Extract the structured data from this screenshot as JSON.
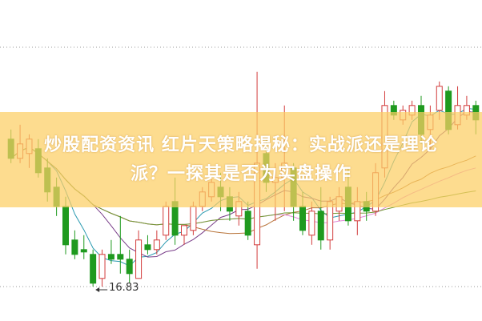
{
  "title_lines": [
    "炒股配资资讯 红片天策略揭秘：实战派还是理论",
    "派？一探其是否为实盘操作"
  ],
  "chart_data": {
    "type": "candlestick",
    "ylim": [
      16.6,
      21.9
    ],
    "grid": false,
    "annotations": [
      {
        "text": "16.83",
        "value": 16.83,
        "arrow": "left"
      }
    ],
    "colors": {
      "up": "#d23c3c",
      "down": "#1f9a1f",
      "ma5": "#2a9ab0",
      "ma10": "#7a3f8a",
      "ma20": "#b8743a",
      "ma30": "#e08ad8",
      "ma60": "#6f9a30"
    },
    "moving_averages": [
      5,
      10,
      20,
      30,
      60
    ],
    "candles": [
      [
        19.9,
        20.1,
        19.4,
        19.5
      ],
      [
        19.5,
        20.2,
        19.4,
        19.8
      ],
      [
        19.6,
        20.0,
        19.3,
        19.9
      ],
      [
        19.7,
        19.9,
        19.1,
        19.2
      ],
      [
        19.3,
        19.5,
        18.6,
        18.8
      ],
      [
        18.9,
        19.1,
        18.3,
        18.5
      ],
      [
        18.5,
        18.7,
        17.5,
        17.7
      ],
      [
        17.8,
        18.0,
        17.4,
        17.5
      ],
      [
        17.6,
        17.9,
        17.4,
        17.55
      ],
      [
        17.5,
        17.6,
        16.83,
        16.9
      ],
      [
        17.0,
        17.6,
        16.83,
        17.5
      ],
      [
        17.5,
        17.8,
        17.3,
        17.4
      ],
      [
        17.5,
        18.3,
        17.1,
        17.4
      ],
      [
        17.4,
        17.6,
        16.9,
        17.1
      ],
      [
        17.0,
        18.0,
        17.0,
        17.8
      ],
      [
        17.7,
        17.9,
        17.5,
        17.6
      ],
      [
        17.6,
        18.0,
        17.5,
        17.8
      ],
      [
        17.9,
        18.6,
        17.8,
        18.5
      ],
      [
        18.6,
        19.1,
        17.7,
        17.9
      ],
      [
        17.9,
        18.1,
        17.7,
        18.1
      ],
      [
        18.0,
        18.6,
        17.9,
        18.5
      ],
      [
        18.5,
        18.9,
        18.4,
        18.8
      ],
      [
        18.7,
        19.1,
        18.6,
        19.0
      ],
      [
        18.9,
        19.2,
        18.4,
        18.7
      ],
      [
        18.7,
        18.9,
        18.2,
        18.4
      ],
      [
        18.3,
        18.8,
        18.1,
        18.6
      ],
      [
        18.4,
        18.6,
        17.8,
        17.9
      ],
      [
        17.7,
        21.3,
        17.2,
        19.4
      ],
      [
        19.6,
        19.9,
        18.8,
        19.0
      ],
      [
        19.0,
        19.4,
        18.2,
        19.1
      ],
      [
        19.1,
        20.6,
        18.4,
        19.4
      ],
      [
        19.3,
        19.4,
        18.2,
        18.5
      ],
      [
        18.5,
        18.8,
        17.9,
        18.0
      ],
      [
        17.9,
        18.6,
        17.7,
        18.4
      ],
      [
        18.4,
        18.9,
        17.6,
        17.8
      ],
      [
        17.8,
        18.7,
        17.6,
        18.6
      ],
      [
        18.4,
        18.9,
        18.2,
        18.7
      ],
      [
        18.9,
        19.3,
        18.1,
        18.2
      ],
      [
        18.2,
        18.9,
        17.9,
        18.6
      ],
      [
        18.6,
        18.8,
        18.2,
        18.4
      ],
      [
        18.4,
        19.4,
        18.3,
        19.2
      ],
      [
        19.3,
        20.9,
        19.1,
        20.6
      ],
      [
        20.6,
        20.7,
        20.3,
        20.4
      ],
      [
        20.3,
        20.6,
        20.2,
        20.5
      ],
      [
        20.4,
        20.7,
        20.3,
        20.6
      ],
      [
        20.6,
        20.8,
        19.8,
        20.0
      ],
      [
        20.1,
        20.6,
        19.7,
        20.4
      ],
      [
        20.5,
        21.1,
        20.3,
        21.0
      ],
      [
        20.9,
        21.0,
        20.0,
        20.1
      ],
      [
        20.2,
        21.0,
        20.1,
        20.6
      ],
      [
        20.4,
        20.8,
        20.3,
        20.6
      ],
      [
        20.6,
        20.7,
        20.0,
        20.3
      ]
    ]
  }
}
